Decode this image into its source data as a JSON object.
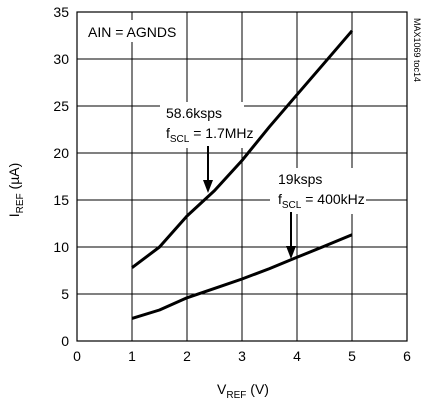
{
  "chart_data": {
    "type": "line",
    "xlabel": {
      "main": "V",
      "sub": "REF",
      "unit": " (V)"
    },
    "ylabel": {
      "main": "I",
      "sub": "REF",
      "unit": " (µA)"
    },
    "xlim": [
      0,
      6
    ],
    "ylim": [
      0,
      35
    ],
    "xticks": [
      "0",
      "1",
      "2",
      "3",
      "4",
      "5",
      "6"
    ],
    "yticks": [
      "0",
      "5",
      "10",
      "15",
      "20",
      "25",
      "30",
      "35"
    ],
    "grid": true,
    "condition_label": "AIN = AGNDS",
    "figure_id": "MAX1069 toc14",
    "series": [
      {
        "x": [
          1.0,
          1.5,
          2.0,
          2.5,
          3.0,
          3.5,
          4.0,
          4.5,
          5.0
        ],
        "values": [
          7.8,
          10.0,
          13.3,
          16.0,
          19.2,
          22.8,
          26.2,
          29.6,
          33.0
        ]
      },
      {
        "x": [
          1.0,
          1.5,
          2.0,
          2.5,
          3.0,
          3.5,
          4.0,
          4.5,
          5.0
        ],
        "values": [
          2.4,
          3.3,
          4.6,
          5.6,
          6.6,
          7.7,
          8.9,
          10.1,
          11.3
        ]
      }
    ],
    "annotations": [
      {
        "line1": "58.6ksps",
        "line2_main": "f",
        "line2_sub": "SCL",
        "line2_rest": " = 1.7MHz"
      },
      {
        "line1": "19ksps",
        "line2_main": "f",
        "line2_sub": "SCL",
        "line2_rest": " = 400kHz"
      }
    ]
  }
}
